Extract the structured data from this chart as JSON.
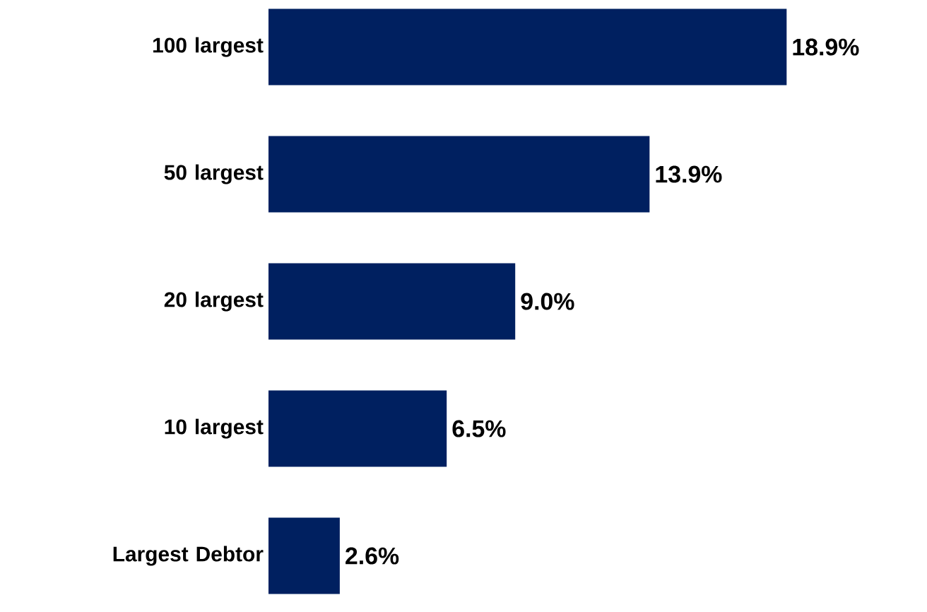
{
  "chart_data": {
    "type": "bar",
    "orientation": "horizontal",
    "categories": [
      "100 largest",
      "50 largest",
      "20 largest",
      "10 largest",
      "Largest Debtor"
    ],
    "values": [
      18.9,
      13.9,
      9.0,
      6.5,
      2.6
    ],
    "value_labels": [
      "18.9%",
      "13.9%",
      "9.0%",
      "6.5%",
      "2.6%"
    ],
    "color": "#002060"
  }
}
